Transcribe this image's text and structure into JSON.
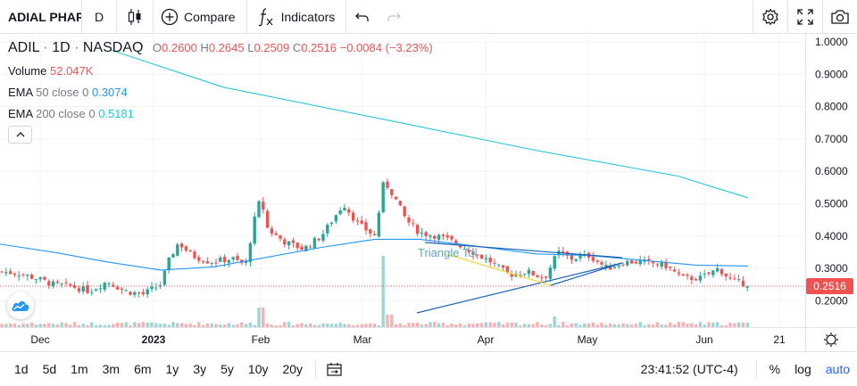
{
  "toolbar": {
    "symbol": "ADIAL PHAR",
    "interval": "D",
    "compare_label": "Compare",
    "indicators_label": "Indicators",
    "icons": [
      "candles-icon",
      "plus-circle-icon",
      "fx-icon",
      "undo-icon",
      "redo-icon",
      "gear-icon",
      "fullscreen-icon",
      "camera-icon"
    ]
  },
  "legend": {
    "ticker": "ADIL",
    "interval": "1D",
    "exchange": "NASDAQ",
    "o_label": "O",
    "o": "0.2600",
    "h_label": "H",
    "h": "0.2645",
    "l_label": "L",
    "l": "0.2509",
    "c_label": "C",
    "c": "0.2516",
    "change": "−0.0084 (−3.23%)",
    "volume_label": "Volume",
    "volume": "52.047K",
    "ema50_label": "EMA",
    "ema50_params": "50 close 0",
    "ema50": "0.3074",
    "ema200_label": "EMA",
    "ema200_params": "200 close 0",
    "ema200": "0.5181"
  },
  "drawing_label": "Triangle Tol",
  "price_tag": "0.2516",
  "colors": {
    "up": "#26a69a",
    "down": "#ef5350",
    "ema50": "#2196f3",
    "ema200": "#26c6da",
    "text": "#131722",
    "muted": "#787b86"
  },
  "chart_data": {
    "type": "candlestick",
    "y_axis_labels": [
      "1.0000",
      "0.9000",
      "0.8000",
      "0.7000",
      "0.6000",
      "0.5000",
      "0.4000",
      "0.3000",
      "0.2000"
    ],
    "ylim": [
      0.2,
      1.0
    ],
    "x_axis_labels": [
      "Dec",
      "2023",
      "Feb",
      "Mar",
      "Apr",
      "May",
      "Jun",
      "21"
    ],
    "last_price": 0.2516,
    "ema50_last": 0.3074,
    "ema200_last": 0.5181
  },
  "bottom": {
    "ranges": [
      "1d",
      "5d",
      "1m",
      "3m",
      "6m",
      "1y",
      "3y",
      "5y",
      "10y",
      "20y"
    ],
    "clock": "23:41:52 (UTC-4)",
    "percent": "%",
    "log": "log",
    "auto": "auto"
  }
}
